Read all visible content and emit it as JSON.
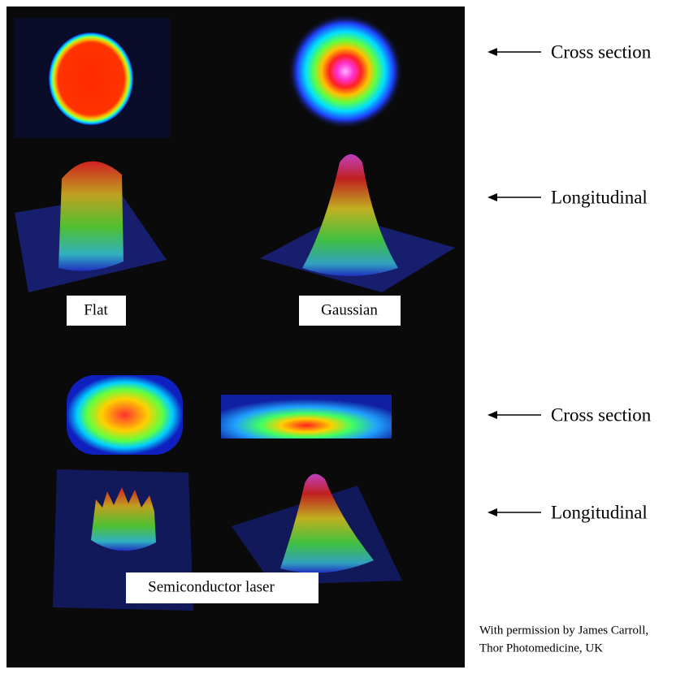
{
  "labels": {
    "flat": "Flat",
    "gaussian": "Gaussian",
    "semiconductor": "Semiconductor laser"
  },
  "annotations": [
    "Cross section",
    "Longitudinal",
    "Cross section",
    "Longitudinal"
  ],
  "credit": [
    "With permission by James Carroll,",
    "Thor Photomedicine, UK"
  ]
}
